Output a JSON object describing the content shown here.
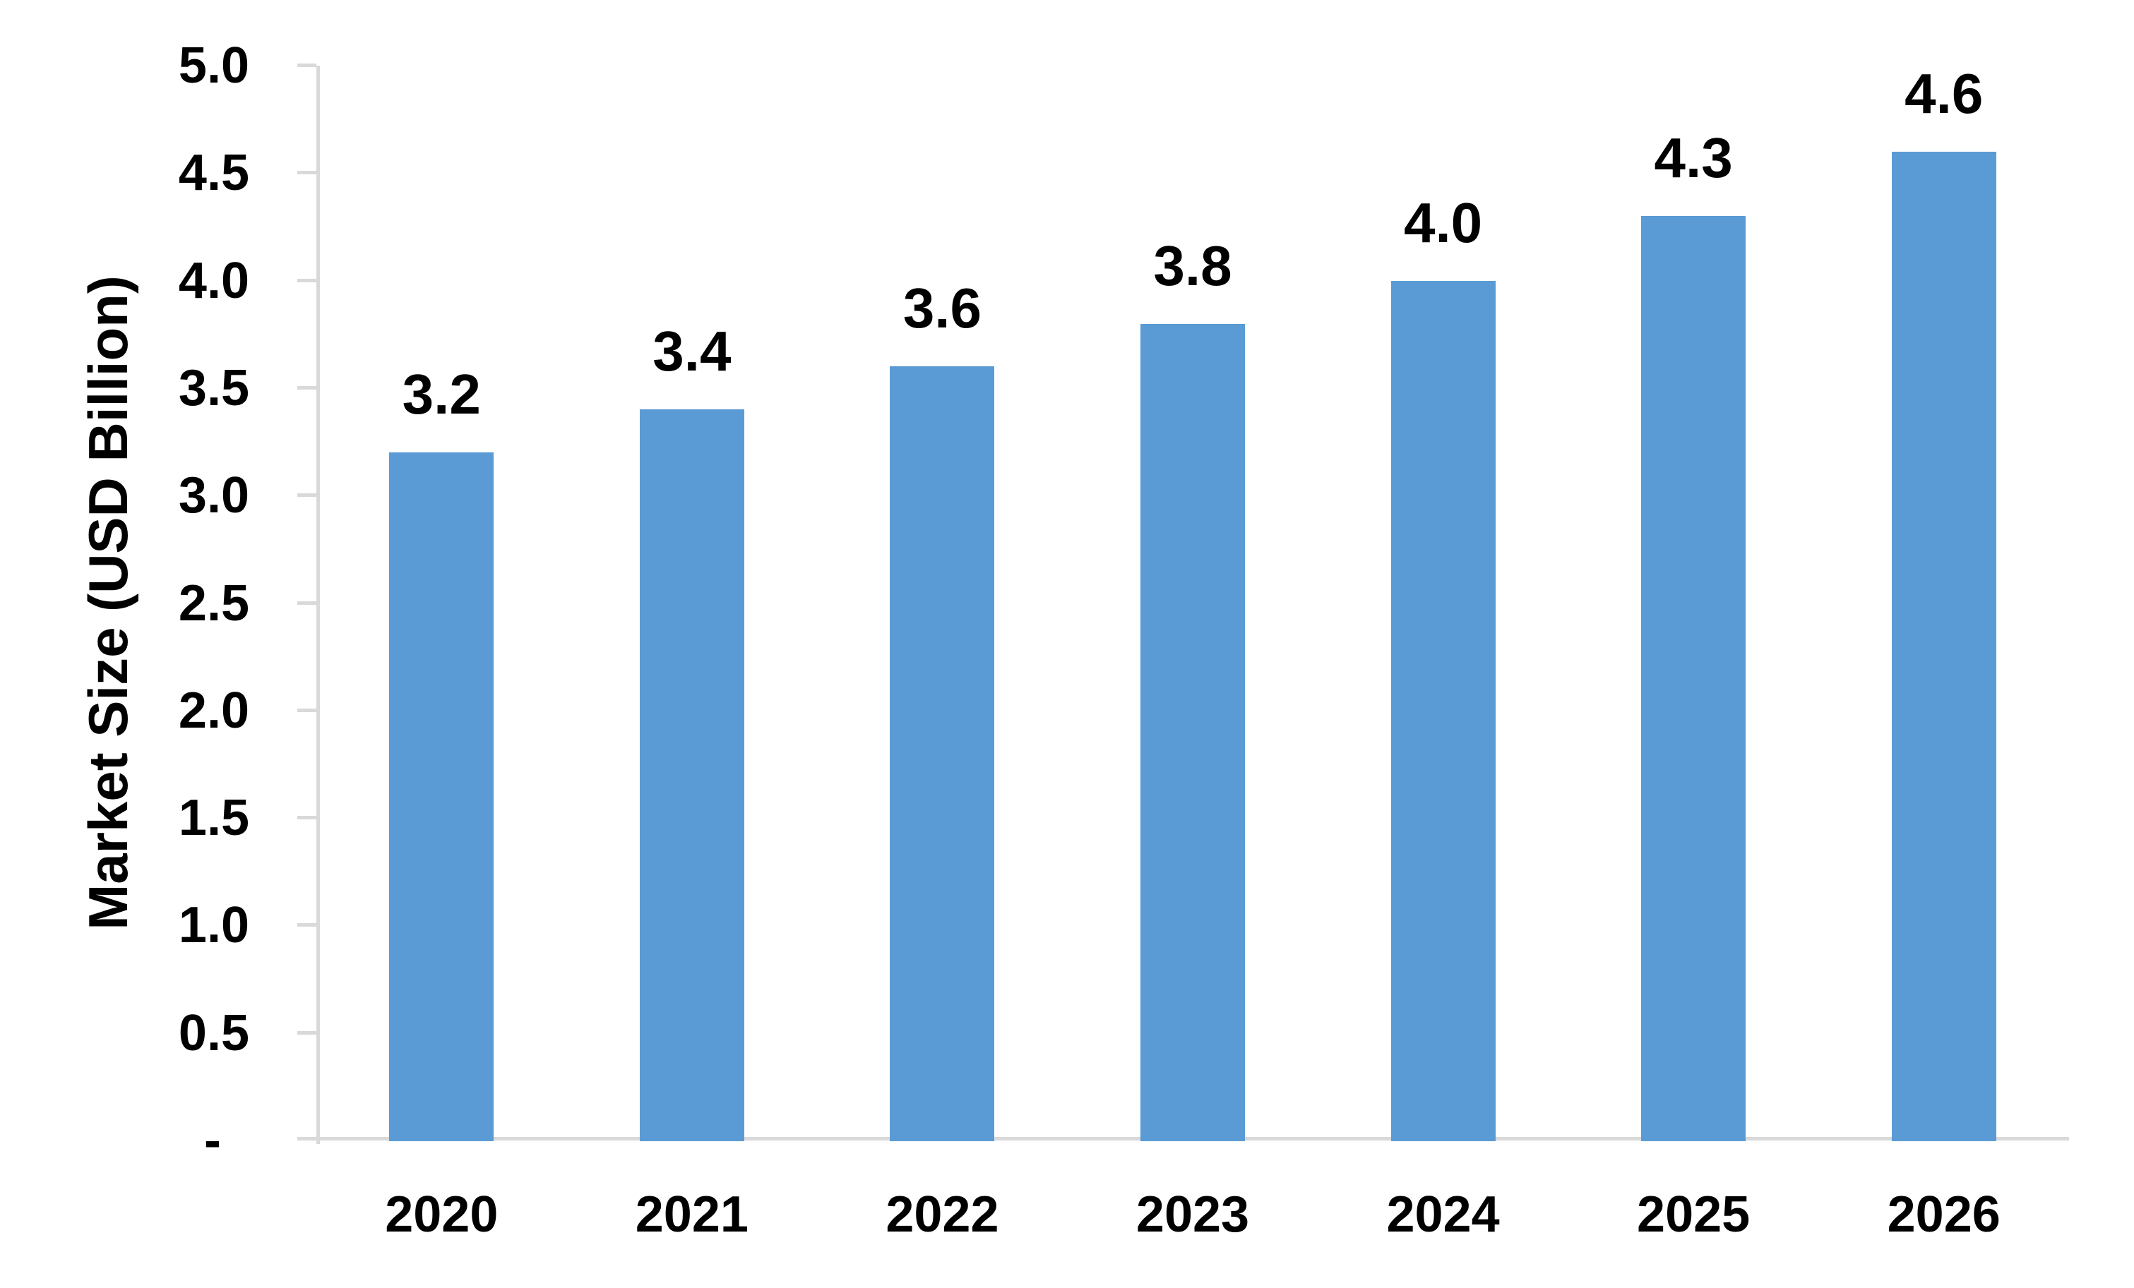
{
  "chart_data": {
    "type": "bar",
    "title": "",
    "categories": [
      "2020",
      "2021",
      "2022",
      "2023",
      "2024",
      "2025",
      "2026"
    ],
    "values": [
      3.2,
      3.4,
      3.6,
      3.8,
      4.0,
      4.3,
      4.6
    ],
    "data_labels": [
      "3.2",
      "3.4",
      "3.6",
      "3.8",
      "4.0",
      "4.3",
      "4.6"
    ],
    "xlabel": "",
    "ylabel": "Market Size (USD Billion)",
    "ylim": [
      0,
      5
    ],
    "ytick_labels": [
      "5.0",
      "4.5",
      "4.0",
      "3.5",
      "3.0",
      "2.5",
      "2.0",
      "1.5",
      "1.0",
      "0.5",
      "-"
    ],
    "ytick_values": [
      5.0,
      4.5,
      4.0,
      3.5,
      3.0,
      2.5,
      2.0,
      1.5,
      1.0,
      0.5,
      0
    ],
    "grid": "off",
    "legend": "none",
    "colors": {
      "bar": "#5B9BD5",
      "axis": "#D9D9D9",
      "text": "#000000",
      "background": "#FFFFFF"
    }
  }
}
